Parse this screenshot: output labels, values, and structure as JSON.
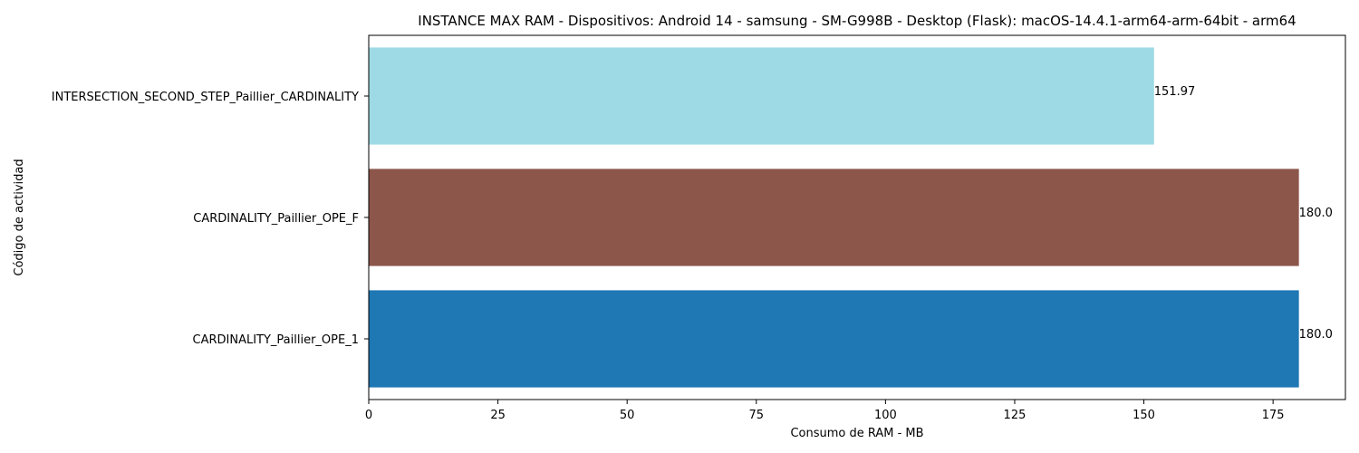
{
  "chart_data": {
    "type": "bar",
    "orientation": "horizontal",
    "title": "INSTANCE MAX RAM - Dispositivos: Android 14 - samsung - SM-G998B - Desktop (Flask): macOS-14.4.1-arm64-arm-64bit - arm64",
    "xlabel": "Consumo de RAM - MB",
    "ylabel": "Código de actividad",
    "categories": [
      "CARDINALITY_Paillier_OPE_1",
      "CARDINALITY_Paillier_OPE_F",
      "INTERSECTION_SECOND_STEP_Paillier_CARDINALITY"
    ],
    "values": [
      180.0,
      180.0,
      151.97
    ],
    "value_labels": [
      "180.0",
      "180.0",
      "151.97"
    ],
    "colors": [
      "#1f77b4",
      "#8c564b",
      "#9edae5"
    ],
    "xlim": [
      0,
      189
    ],
    "xticks": [
      0,
      25,
      50,
      75,
      100,
      125,
      150,
      175
    ],
    "grid": false,
    "legend": "none"
  }
}
